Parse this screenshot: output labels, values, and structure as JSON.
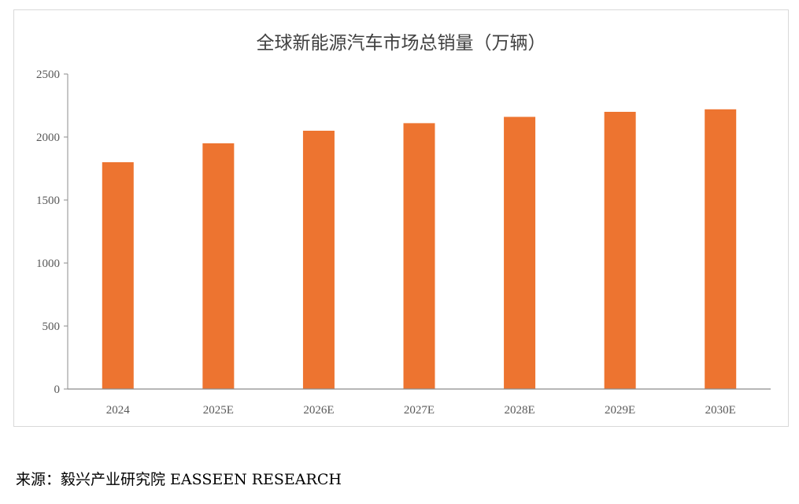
{
  "chart_data": {
    "type": "bar",
    "title": "全球新能源汽车市场总销量（万辆）",
    "categories": [
      "2024",
      "2025E",
      "2026E",
      "2027E",
      "2028E",
      "2029E",
      "2030E"
    ],
    "values": [
      1800,
      1950,
      2050,
      2110,
      2160,
      2200,
      2220
    ],
    "ylim": [
      0,
      2500
    ],
    "yticks": [
      0,
      500,
      1000,
      1500,
      2000,
      2500
    ],
    "xlabel": "",
    "ylabel": "",
    "grid": false,
    "bar_color": "#ED7430"
  },
  "source_note": "来源：毅兴产业研究院 EASSEEN RESEARCH"
}
